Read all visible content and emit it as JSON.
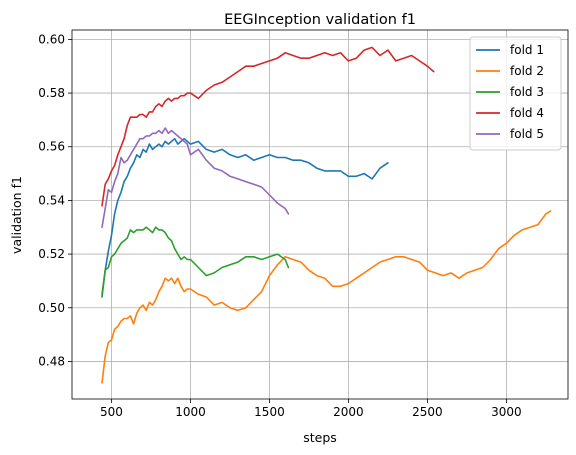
{
  "chart_data": {
    "type": "line",
    "title": "EEGInception validation f1",
    "xlabel": "steps",
    "ylabel": "validation f1",
    "xlim": [
      250,
      3390
    ],
    "ylim": [
      0.466,
      0.6035
    ],
    "xticks": [
      500,
      1000,
      1500,
      2000,
      2500,
      3000
    ],
    "yticks": [
      0.48,
      0.5,
      0.52,
      0.54,
      0.56,
      0.58,
      0.6
    ],
    "ytick_labels": [
      "0.48",
      "0.50",
      "0.52",
      "0.54",
      "0.56",
      "0.58",
      "0.60"
    ],
    "grid": true,
    "legend_position": "top-right",
    "series": [
      {
        "name": "fold 1",
        "color": "#1f77b4",
        "x": [
          440,
          460,
          480,
          500,
          520,
          540,
          560,
          580,
          600,
          620,
          640,
          660,
          680,
          700,
          720,
          740,
          760,
          780,
          800,
          820,
          840,
          860,
          880,
          900,
          920,
          940,
          960,
          980,
          1000,
          1050,
          1100,
          1150,
          1200,
          1250,
          1300,
          1350,
          1400,
          1450,
          1500,
          1550,
          1600,
          1650,
          1700,
          1750,
          1800,
          1850,
          1900,
          1950,
          2000,
          2050,
          2100,
          2150,
          2200,
          2250
        ],
        "y": [
          0.504,
          0.514,
          0.521,
          0.527,
          0.535,
          0.54,
          0.543,
          0.547,
          0.549,
          0.552,
          0.554,
          0.557,
          0.556,
          0.559,
          0.558,
          0.561,
          0.559,
          0.56,
          0.561,
          0.56,
          0.562,
          0.561,
          0.562,
          0.563,
          0.561,
          0.562,
          0.563,
          0.562,
          0.561,
          0.562,
          0.559,
          0.558,
          0.559,
          0.557,
          0.556,
          0.557,
          0.555,
          0.556,
          0.557,
          0.556,
          0.556,
          0.555,
          0.555,
          0.554,
          0.552,
          0.551,
          0.551,
          0.551,
          0.549,
          0.549,
          0.55,
          0.548,
          0.552,
          0.554
        ]
      },
      {
        "name": "fold 2",
        "color": "#ff7f0e",
        "x": [
          440,
          460,
          480,
          500,
          520,
          540,
          560,
          580,
          600,
          620,
          640,
          660,
          680,
          700,
          720,
          740,
          760,
          780,
          800,
          820,
          840,
          860,
          880,
          900,
          920,
          940,
          960,
          980,
          1000,
          1050,
          1100,
          1150,
          1200,
          1250,
          1300,
          1350,
          1400,
          1450,
          1500,
          1550,
          1600,
          1650,
          1700,
          1750,
          1800,
          1850,
          1900,
          1950,
          2000,
          2050,
          2100,
          2150,
          2200,
          2250,
          2300,
          2350,
          2400,
          2450,
          2500,
          2550,
          2600,
          2650,
          2700,
          2750,
          2800,
          2850,
          2900,
          2950,
          3000,
          3050,
          3100,
          3150,
          3200,
          3250,
          3280
        ],
        "y": [
          0.472,
          0.482,
          0.487,
          0.488,
          0.492,
          0.493,
          0.495,
          0.496,
          0.496,
          0.497,
          0.494,
          0.498,
          0.5,
          0.501,
          0.499,
          0.502,
          0.501,
          0.503,
          0.506,
          0.508,
          0.511,
          0.51,
          0.511,
          0.509,
          0.511,
          0.508,
          0.506,
          0.507,
          0.507,
          0.505,
          0.504,
          0.501,
          0.502,
          0.5,
          0.499,
          0.5,
          0.503,
          0.506,
          0.512,
          0.516,
          0.519,
          0.518,
          0.517,
          0.514,
          0.512,
          0.511,
          0.508,
          0.508,
          0.509,
          0.511,
          0.513,
          0.515,
          0.517,
          0.518,
          0.519,
          0.519,
          0.518,
          0.517,
          0.514,
          0.513,
          0.512,
          0.513,
          0.511,
          0.513,
          0.514,
          0.515,
          0.518,
          0.522,
          0.524,
          0.527,
          0.529,
          0.53,
          0.531,
          0.535,
          0.536
        ]
      },
      {
        "name": "fold 3",
        "color": "#2ca02c",
        "x": [
          440,
          460,
          480,
          500,
          520,
          540,
          560,
          580,
          600,
          620,
          640,
          660,
          680,
          700,
          720,
          740,
          760,
          780,
          800,
          820,
          840,
          860,
          880,
          900,
          920,
          940,
          960,
          980,
          1000,
          1050,
          1100,
          1150,
          1200,
          1250,
          1300,
          1350,
          1400,
          1450,
          1500,
          1550,
          1600,
          1620
        ],
        "y": [
          0.505,
          0.514,
          0.515,
          0.519,
          0.52,
          0.522,
          0.524,
          0.525,
          0.526,
          0.529,
          0.528,
          0.529,
          0.529,
          0.529,
          0.53,
          0.529,
          0.528,
          0.53,
          0.529,
          0.529,
          0.528,
          0.526,
          0.525,
          0.522,
          0.52,
          0.518,
          0.519,
          0.518,
          0.518,
          0.515,
          0.512,
          0.513,
          0.515,
          0.516,
          0.517,
          0.519,
          0.519,
          0.518,
          0.519,
          0.52,
          0.518,
          0.515
        ]
      },
      {
        "name": "fold 4",
        "color": "#d62728",
        "x": [
          440,
          460,
          480,
          500,
          520,
          540,
          560,
          580,
          600,
          620,
          640,
          660,
          680,
          700,
          720,
          740,
          760,
          780,
          800,
          820,
          840,
          860,
          880,
          900,
          920,
          940,
          960,
          980,
          1000,
          1050,
          1100,
          1150,
          1200,
          1250,
          1300,
          1350,
          1400,
          1450,
          1500,
          1550,
          1600,
          1650,
          1700,
          1750,
          1800,
          1850,
          1900,
          1950,
          2000,
          2050,
          2100,
          2150,
          2200,
          2250,
          2300,
          2350,
          2400,
          2450,
          2500,
          2540
        ],
        "y": [
          0.538,
          0.546,
          0.548,
          0.551,
          0.553,
          0.557,
          0.56,
          0.563,
          0.568,
          0.571,
          0.571,
          0.571,
          0.572,
          0.572,
          0.571,
          0.573,
          0.573,
          0.575,
          0.576,
          0.575,
          0.577,
          0.578,
          0.577,
          0.578,
          0.578,
          0.579,
          0.579,
          0.58,
          0.58,
          0.578,
          0.581,
          0.583,
          0.584,
          0.586,
          0.588,
          0.59,
          0.59,
          0.591,
          0.592,
          0.593,
          0.595,
          0.594,
          0.593,
          0.593,
          0.594,
          0.595,
          0.594,
          0.595,
          0.592,
          0.593,
          0.596,
          0.597,
          0.594,
          0.596,
          0.592,
          0.593,
          0.594,
          0.592,
          0.59,
          0.588
        ]
      },
      {
        "name": "fold 5",
        "color": "#9467bd",
        "x": [
          440,
          460,
          480,
          500,
          520,
          540,
          560,
          580,
          600,
          620,
          640,
          660,
          680,
          700,
          720,
          740,
          760,
          780,
          800,
          820,
          840,
          860,
          880,
          900,
          920,
          940,
          960,
          980,
          1000,
          1050,
          1100,
          1150,
          1200,
          1250,
          1300,
          1350,
          1400,
          1450,
          1500,
          1550,
          1600,
          1620
        ],
        "y": [
          0.53,
          0.537,
          0.544,
          0.543,
          0.547,
          0.55,
          0.556,
          0.554,
          0.555,
          0.557,
          0.559,
          0.561,
          0.563,
          0.563,
          0.564,
          0.564,
          0.565,
          0.565,
          0.566,
          0.565,
          0.567,
          0.565,
          0.566,
          0.565,
          0.564,
          0.563,
          0.562,
          0.561,
          0.557,
          0.559,
          0.555,
          0.552,
          0.551,
          0.549,
          0.548,
          0.547,
          0.546,
          0.545,
          0.542,
          0.539,
          0.537,
          0.535
        ]
      }
    ]
  }
}
